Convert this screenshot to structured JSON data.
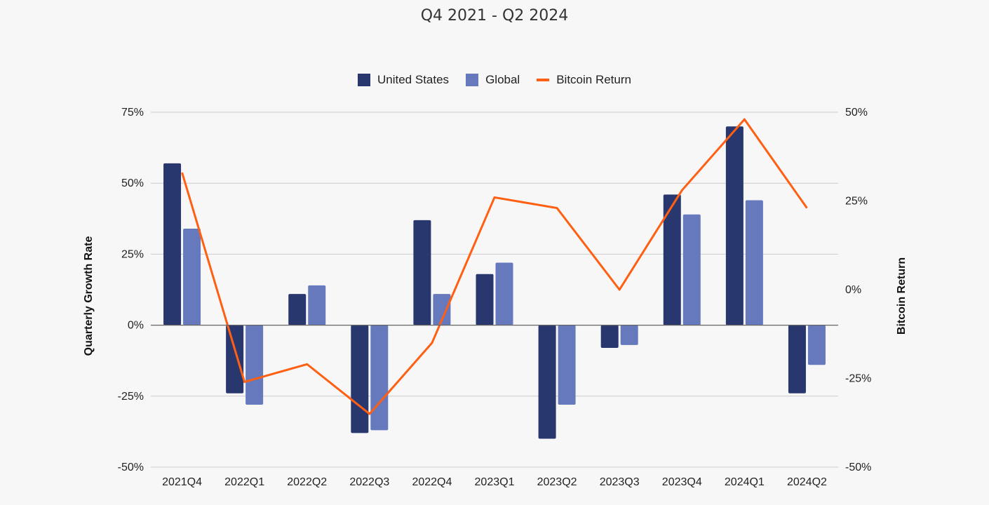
{
  "subtitle": "Q4 2021 - Q2 2024",
  "colors": {
    "united_states": "#28376e",
    "global": "#6679bd",
    "bitcoin": "#ff5f12",
    "grid": "#cccccc",
    "zero": "#666666"
  },
  "chart_data": {
    "type": "bar",
    "categories": [
      "2021Q4",
      "2022Q1",
      "2022Q2",
      "2022Q3",
      "2022Q4",
      "2023Q1",
      "2023Q2",
      "2023Q3",
      "2023Q4",
      "2024Q1",
      "2024Q2"
    ],
    "series": [
      {
        "name": "United States",
        "type": "bar",
        "axis": "left",
        "values": [
          57,
          -24,
          11,
          -38,
          37,
          18,
          -40,
          -8,
          46,
          70,
          -24
        ]
      },
      {
        "name": "Global",
        "type": "bar",
        "axis": "left",
        "values": [
          34,
          -28,
          14,
          -37,
          11,
          22,
          -28,
          -7,
          39,
          44,
          -14
        ]
      },
      {
        "name": "Bitcoin Return",
        "type": "line",
        "axis": "right",
        "values": [
          33,
          -26,
          -21,
          -35,
          -15,
          26,
          23,
          0,
          28,
          48,
          23
        ]
      }
    ],
    "ylabel": "Quarterly Growth Rate",
    "y2label": "Bitcoin Return",
    "ylim": [
      -50,
      75
    ],
    "y2lim": [
      -50,
      50
    ],
    "yticks": [
      "75%",
      "50%",
      "25%",
      "0%",
      "-25%",
      "-50%"
    ],
    "y2ticks": [
      "50%",
      "25%",
      "0%",
      "-25%",
      "-50%"
    ],
    "grid": true,
    "legend_position": "top"
  }
}
